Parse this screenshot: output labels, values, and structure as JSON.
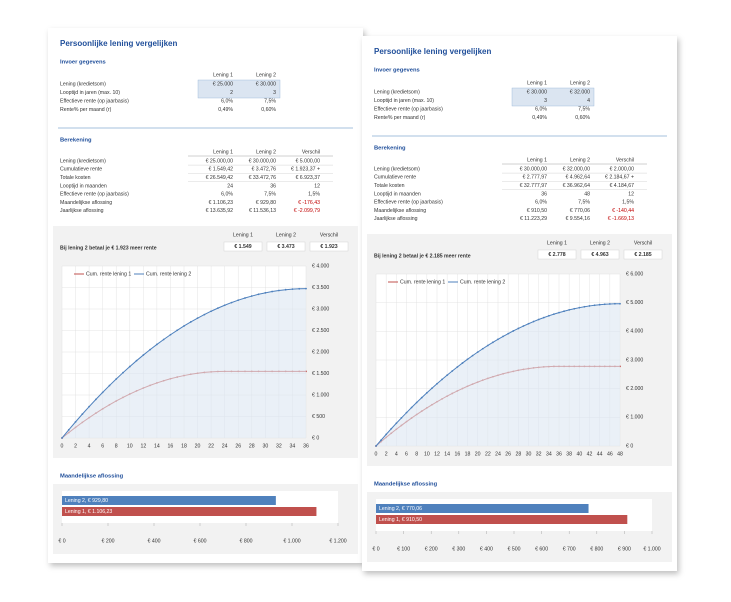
{
  "pages": [
    {
      "title": "Persoonlijke lening vergelijken",
      "input": {
        "section": "Invoer gegevens",
        "headers": [
          "Lening 1",
          "Lening 2"
        ],
        "rows": [
          {
            "label": "Lening (kredietsom)",
            "values": [
              "€ 25.000",
              "€ 30.000"
            ]
          },
          {
            "label": "Looptijd in jaren (max. 10)",
            "values": [
              "2",
              "3"
            ]
          },
          {
            "label": "Effectieve rente (op jaarbasis)",
            "values": [
              "6,0%",
              "7,5%"
            ]
          },
          {
            "label": "Rente% per maand (r)",
            "values": [
              "0,49%",
              "0,60%"
            ]
          }
        ]
      },
      "calc": {
        "section": "Berekening",
        "headers": [
          "Lening 1",
          "Lening 2",
          "Verschil"
        ],
        "rows": [
          {
            "label": "Lening (kredietsom)",
            "values": [
              "€ 25.000,00",
              "€ 30.000,00",
              "€ 5.000,00"
            ]
          },
          {
            "label": "Cumulatieve rente",
            "values": [
              "€ 1.549,42",
              "€ 3.472,76",
              "€ 1.923,37 +"
            ]
          },
          {
            "label": "Totale kosten",
            "values": [
              "€ 26.549,42",
              "€ 33.472,76",
              "€ 6.923,37"
            ]
          },
          {
            "label": "Looptijd in maanden",
            "values": [
              "24",
              "36",
              "12"
            ]
          },
          {
            "label": "Effectieve rente (op jaarbasis)",
            "values": [
              "6,0%",
              "7,5%",
              "1,5%"
            ]
          },
          {
            "label": "Maandelijkse aflossing",
            "values": [
              "€ 1.106,23",
              "€ 929,80",
              "€ -176,43"
            ]
          },
          {
            "label": "Jaarlijkse aflossing",
            "values": [
              "€ 13.635,92",
              "€ 11.536,13",
              "€ -2.099,79"
            ]
          }
        ]
      },
      "summary": {
        "text": "Bij lening 2 betaal je € 1.923 meer rente",
        "headers": [
          "Lening 1",
          "Lening 2",
          "Verschil"
        ],
        "values": [
          "€ 1.549",
          "€ 3.473",
          "€ 1.923"
        ]
      },
      "chart_data": [
        {
          "type": "line",
          "legend": "top-left",
          "grid": true,
          "x": [
            0,
            1,
            2,
            3,
            4,
            5,
            6,
            7,
            8,
            9,
            10,
            11,
            12,
            13,
            14,
            15,
            16,
            17,
            18,
            19,
            20,
            21,
            22,
            23,
            24,
            25,
            26,
            27,
            28,
            29,
            30,
            31,
            32,
            33,
            34,
            35,
            36
          ],
          "series": [
            {
              "name": "Cum. rente lening 1",
              "color": "#c0504d",
              "values": [
                0,
                126,
                247,
                363,
                473,
                578,
                678,
                772,
                861,
                944,
                1022,
                1095,
                1162,
                1224,
                1280,
                1331,
                1377,
                1417,
                1452,
                1482,
                1506,
                1525,
                1538,
                1546,
                1549,
                1549,
                1549,
                1549,
                1549,
                1549,
                1549,
                1549,
                1549,
                1549,
                1549,
                1549,
                1549
              ]
            },
            {
              "name": "Cum. rente lening 2",
              "color": "#4f81bd",
              "values": [
                0,
                190,
                375,
                555,
                729,
                898,
                1061,
                1219,
                1372,
                1519,
                1661,
                1798,
                1929,
                2055,
                2176,
                2291,
                2401,
                2505,
                2605,
                2699,
                2787,
                2870,
                2948,
                3020,
                3087,
                3149,
                3205,
                3256,
                3301,
                3342,
                3376,
                3406,
                3430,
                3449,
                3462,
                3470,
                3473
              ]
            }
          ],
          "xlim": [
            0,
            36
          ],
          "xticks": [
            0,
            2,
            4,
            6,
            8,
            10,
            12,
            14,
            16,
            18,
            20,
            22,
            24,
            26,
            28,
            30,
            32,
            34,
            36
          ],
          "ylim": [
            0,
            4000
          ],
          "yticks": [
            {
              "value": 0,
              "label": "€ 0"
            },
            {
              "value": 500,
              "label": "€ 500"
            },
            {
              "value": 1000,
              "label": "€ 1.000"
            },
            {
              "value": 1500,
              "label": "€ 1.500"
            },
            {
              "value": 2000,
              "label": "€ 2.000"
            },
            {
              "value": 2500,
              "label": "€ 2.500"
            },
            {
              "value": 3000,
              "label": "€ 3.000"
            },
            {
              "value": 3500,
              "label": "€ 3.500"
            },
            {
              "value": 4000,
              "label": "€ 4.000"
            }
          ]
        },
        {
          "type": "bar",
          "orientation": "horizontal",
          "title": "Maandelijkse aflossing",
          "values": [
            929.8,
            1106.23
          ],
          "value_labels": [
            "Lening 2, € 929,80",
            "Lening 1, € 1.106,23"
          ],
          "colors": [
            "#4f81bd",
            "#c0504d"
          ],
          "xlim": [
            0,
            1200
          ],
          "xticks": [
            {
              "value": 0,
              "label": "€ 0"
            },
            {
              "value": 200,
              "label": "€ 200"
            },
            {
              "value": 400,
              "label": "€ 400"
            },
            {
              "value": 600,
              "label": "€ 600"
            },
            {
              "value": 800,
              "label": "€ 800"
            },
            {
              "value": 1000,
              "label": "€ 1.000"
            },
            {
              "value": 1200,
              "label": "€ 1.200"
            }
          ]
        }
      ]
    },
    {
      "title": "Persoonlijke lening vergelijken",
      "input": {
        "section": "Invoer gegevens",
        "headers": [
          "Lening 1",
          "Lening 2"
        ],
        "rows": [
          {
            "label": "Lening (kredietsom)",
            "values": [
              "€ 30.000",
              "€ 32.000"
            ]
          },
          {
            "label": "Looptijd in jaren (max. 10)",
            "values": [
              "3",
              "4"
            ]
          },
          {
            "label": "Effectieve rente (op jaarbasis)",
            "values": [
              "6,0%",
              "7,5%"
            ]
          },
          {
            "label": "Rente% per maand (r)",
            "values": [
              "0,49%",
              "0,60%"
            ]
          }
        ]
      },
      "calc": {
        "section": "Berekening",
        "headers": [
          "Lening 1",
          "Lening 2",
          "Verschil"
        ],
        "rows": [
          {
            "label": "Lening (kredietsom)",
            "values": [
              "€ 30.000,00",
              "€ 32.000,00",
              "€ 2.000,00"
            ]
          },
          {
            "label": "Cumulatieve rente",
            "values": [
              "€ 2.777,97",
              "€ 4.962,64",
              "€ 2.184,67 +"
            ]
          },
          {
            "label": "Totale kosten",
            "values": [
              "€ 32.777,97",
              "€ 36.962,64",
              "€ 4.184,67"
            ]
          },
          {
            "label": "Looptijd in maanden",
            "values": [
              "36",
              "48",
              "12"
            ]
          },
          {
            "label": "Effectieve rente (op jaarbasis)",
            "values": [
              "6,0%",
              "7,5%",
              "1,5%"
            ]
          },
          {
            "label": "Maandelijkse aflossing",
            "values": [
              "€ 910,50",
              "€ 770,06",
              "€ -140,44"
            ]
          },
          {
            "label": "Jaarlijkse aflossing",
            "values": [
              "€ 11.223,29",
              "€ 9.554,16",
              "€ -1.669,13"
            ]
          }
        ]
      },
      "summary": {
        "text": "Bij lening 2 betaal je € 2.185 meer rente",
        "headers": [
          "Lening 1",
          "Lening 2",
          "Verschil"
        ],
        "values": [
          "€ 2.778",
          "€ 4.963",
          "€ 2.185"
        ]
      },
      "chart_data": [
        {
          "type": "line",
          "legend": "top-left",
          "grid": true,
          "x": [
            0,
            1,
            2,
            3,
            4,
            5,
            6,
            7,
            8,
            9,
            10,
            11,
            12,
            13,
            14,
            15,
            16,
            17,
            18,
            19,
            20,
            21,
            22,
            23,
            24,
            25,
            26,
            27,
            28,
            29,
            30,
            31,
            32,
            33,
            34,
            35,
            36,
            37,
            38,
            39,
            40,
            41,
            42,
            43,
            44,
            45,
            46,
            47,
            48
          ],
          "series": [
            {
              "name": "Cum. rente lening 1",
              "color": "#c0504d",
              "values": [
                0,
                152,
                300,
                444,
                583,
                718,
                849,
                975,
                1098,
                1215,
                1329,
                1438,
                1543,
                1644,
                1740,
                1833,
                1921,
                2004,
                2084,
                2158,
                2229,
                2296,
                2358,
                2416,
                2469,
                2519,
                2564,
                2604,
                2641,
                2673,
                2701,
                2724,
                2744,
                2759,
                2769,
                2776,
                2778,
                2778,
                2778,
                2778,
                2778,
                2778,
                2778,
                2778,
                2778,
                2778,
                2778,
                2778,
                2778
              ]
            },
            {
              "name": "Cum. rente lening 2",
              "color": "#4f81bd",
              "values": [
                0,
                205,
                405,
                601,
                793,
                980,
                1163,
                1342,
                1517,
                1686,
                1853,
                2014,
                2171,
                2324,
                2473,
                2617,
                2757,
                2893,
                3024,
                3152,
                3274,
                3393,
                3507,
                3617,
                3722,
                3823,
                3920,
                4013,
                4101,
                4185,
                4265,
                4341,
                4412,
                4478,
                4541,
                4599,
                4653,
                4702,
                4748,
                4788,
                4825,
                4857,
                4886,
                4909,
                4929,
                4944,
                4955,
                4961,
                4963
              ]
            }
          ],
          "xlim": [
            0,
            48
          ],
          "xticks": [
            0,
            2,
            4,
            6,
            8,
            10,
            12,
            14,
            16,
            18,
            20,
            22,
            24,
            26,
            28,
            30,
            32,
            34,
            36,
            38,
            40,
            42,
            44,
            46,
            48
          ],
          "ylim": [
            0,
            6000
          ],
          "yticks": [
            {
              "value": 0,
              "label": "€ 0"
            },
            {
              "value": 1000,
              "label": "€ 1.000"
            },
            {
              "value": 2000,
              "label": "€ 2.000"
            },
            {
              "value": 3000,
              "label": "€ 3.000"
            },
            {
              "value": 4000,
              "label": "€ 4.000"
            },
            {
              "value": 5000,
              "label": "€ 5.000"
            },
            {
              "value": 6000,
              "label": "€ 6.000"
            }
          ]
        },
        {
          "type": "bar",
          "orientation": "horizontal",
          "title": "Maandelijkse aflossing",
          "values": [
            770.06,
            910.5
          ],
          "value_labels": [
            "Lening 2, € 770,06",
            "Lening 1, € 910,50"
          ],
          "colors": [
            "#4f81bd",
            "#c0504d"
          ],
          "xlim": [
            0,
            1000
          ],
          "xticks": [
            {
              "value": 0,
              "label": "€ 0"
            },
            {
              "value": 100,
              "label": "€ 100"
            },
            {
              "value": 200,
              "label": "€ 200"
            },
            {
              "value": 300,
              "label": "€ 300"
            },
            {
              "value": 400,
              "label": "€ 400"
            },
            {
              "value": 500,
              "label": "€ 500"
            },
            {
              "value": 600,
              "label": "€ 600"
            },
            {
              "value": 700,
              "label": "€ 700"
            },
            {
              "value": 800,
              "label": "€ 800"
            },
            {
              "value": 900,
              "label": "€ 900"
            },
            {
              "value": 1000,
              "label": "€ 1.000"
            }
          ]
        }
      ]
    }
  ]
}
